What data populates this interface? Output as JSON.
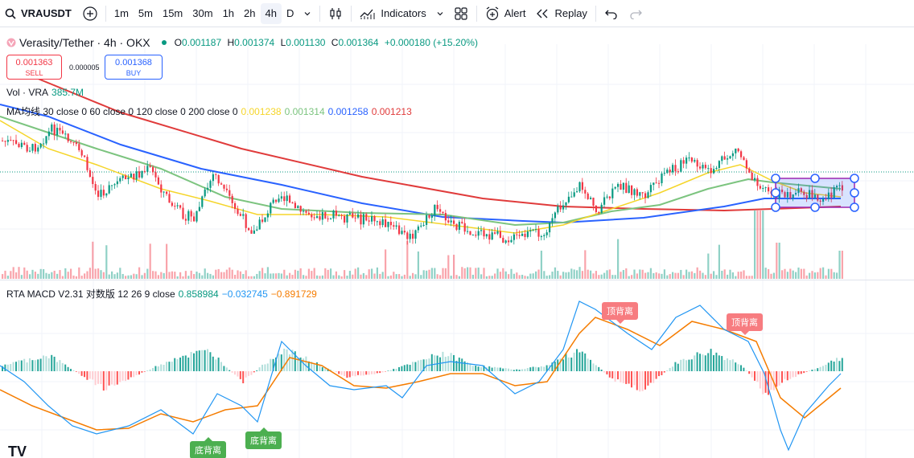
{
  "toolbar": {
    "symbol": "VRAUSDT",
    "intervals": [
      "1m",
      "5m",
      "15m",
      "30m",
      "1h",
      "2h",
      "4h",
      "D"
    ],
    "active_interval": "4h",
    "indicators_label": "Indicators",
    "alert_label": "Alert",
    "replay_label": "Replay"
  },
  "legend": {
    "title": "Verasity/Tether · 4h · OKX",
    "o_label": "O",
    "o": "0.001187",
    "h_label": "H",
    "h": "0.001374",
    "l_label": "L",
    "l": "0.001130",
    "c_label": "C",
    "c": "0.001364",
    "change": "+0.000180 (+15.20%)"
  },
  "trade": {
    "sell_price": "0.001363",
    "sell_label": "SELL",
    "spread": "0.000005",
    "buy_price": "0.001368",
    "buy_label": "BUY"
  },
  "volume_legend": {
    "label": "Vol · VRA",
    "value": "385.7M"
  },
  "ma_legend": {
    "label": "MA均线 30 close 0 60 close 0 120 close 0 200 close 0",
    "values": [
      {
        "value": "0.001238",
        "color": "#f5d52a"
      },
      {
        "value": "0.001314",
        "color": "#7cc47f"
      },
      {
        "value": "0.001258",
        "color": "#2962ff"
      },
      {
        "value": "0.001213",
        "color": "#e03b3b"
      }
    ]
  },
  "macd_legend": {
    "label": "RTA MACD V2.31 对数版 12 26 9 close",
    "values": [
      {
        "value": "0.858984",
        "color": "#089981"
      },
      {
        "value": "−0.032745",
        "color": "#2196f3"
      },
      {
        "value": "−0.891729",
        "color": "#f57c00"
      }
    ]
  },
  "tags": {
    "top_divergence": "顶背离",
    "bottom_divergence": "底背离"
  },
  "colors": {
    "up": "#089981",
    "down": "#f23645",
    "ma30": "#f5d52a",
    "ma60": "#7cc47f",
    "ma120": "#2962ff",
    "ma200": "#e03b3b",
    "macd_line": "#2196f3",
    "signal_line": "#f57c00"
  },
  "logo_text": "TV"
}
